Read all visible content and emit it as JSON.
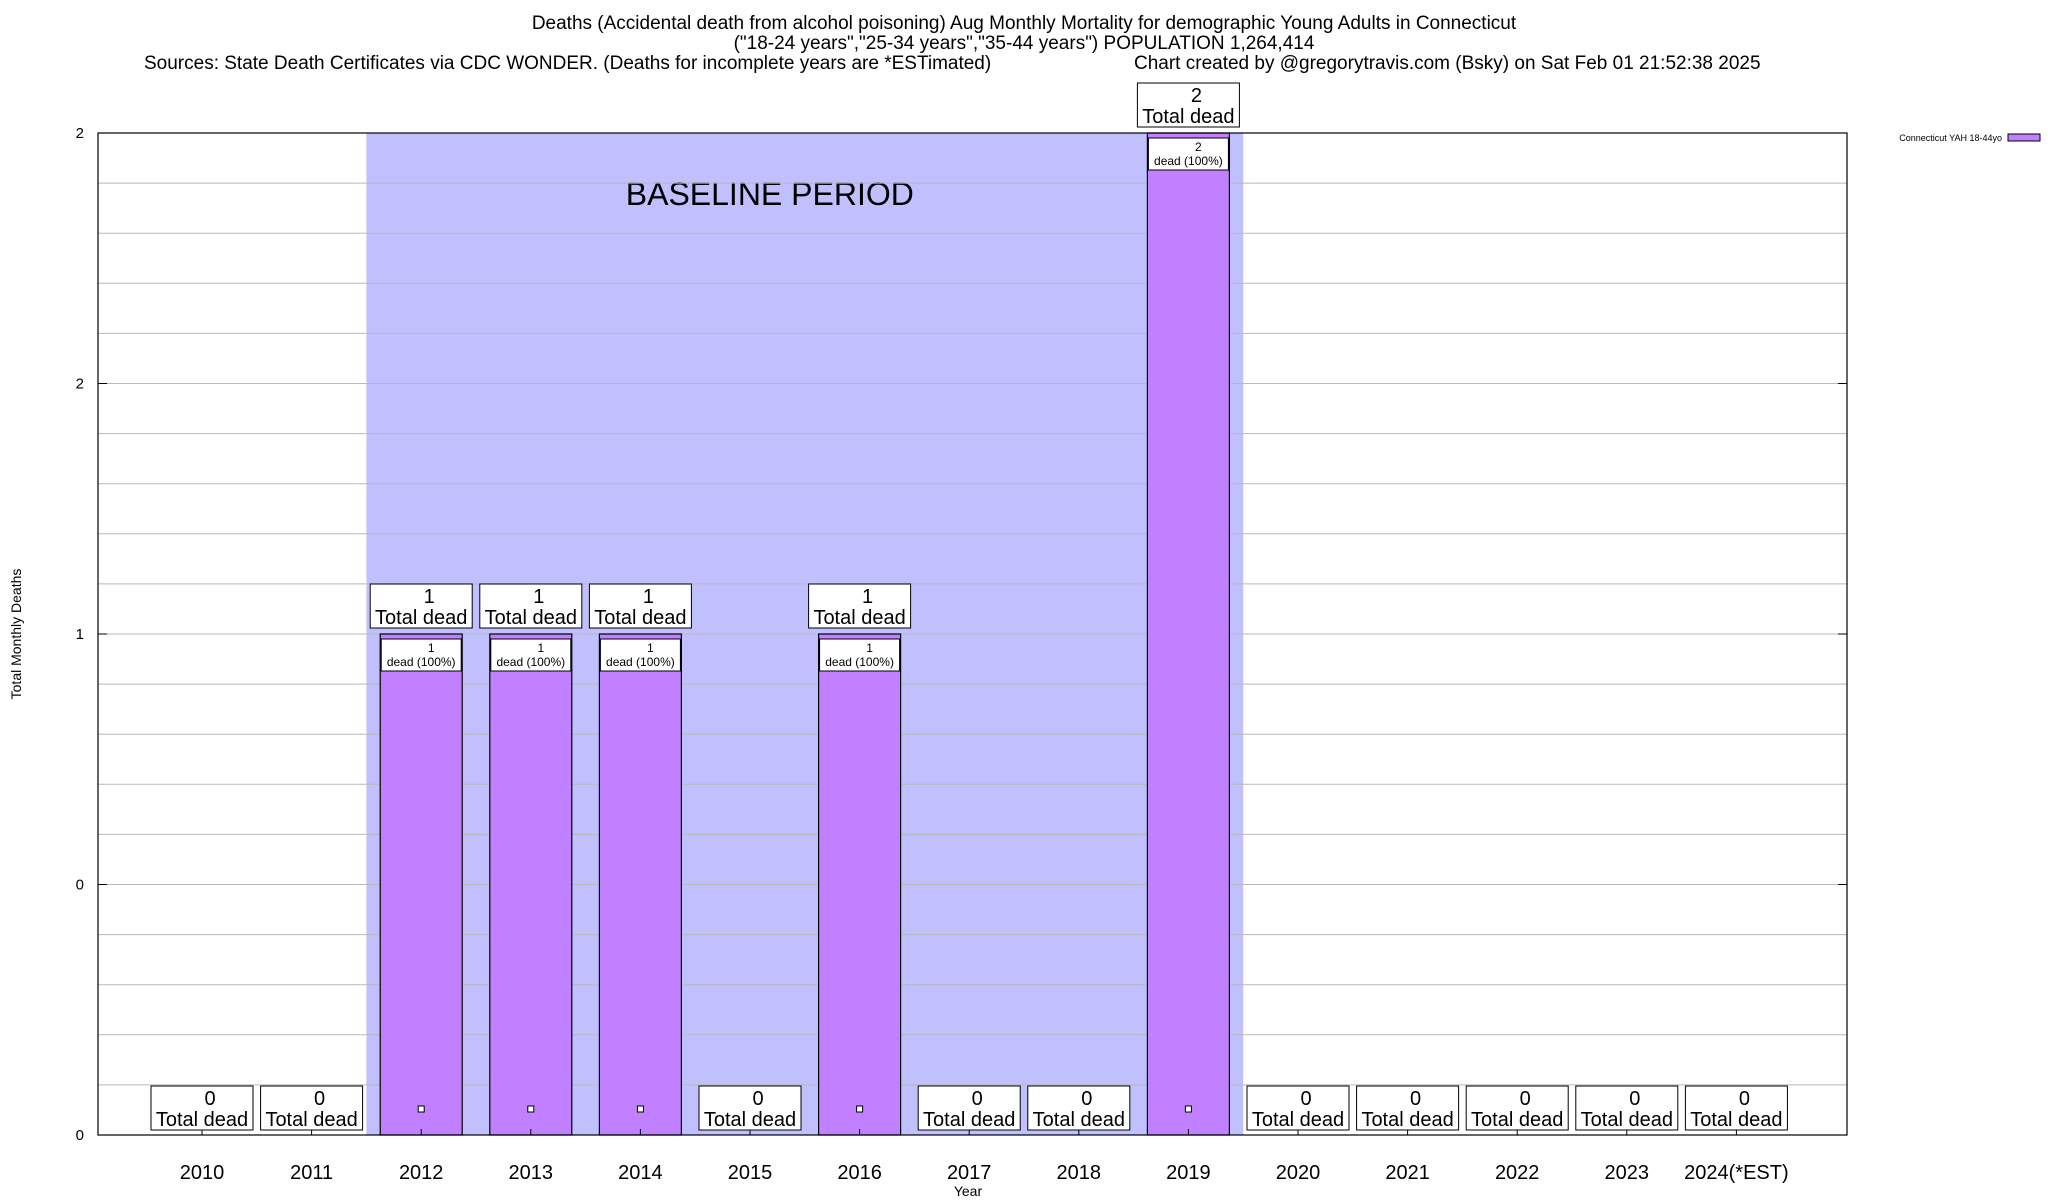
{
  "header": {
    "line1": "Deaths (Accidental death from alcohol poisoning) Aug Monthly Mortality for demographic Young Adults in Connecticut",
    "line2": "(\"18-24 years\",\"25-34 years\",\"35-44 years\") POPULATION 1,264,414",
    "sources": "Sources: State Death Certificates via CDC WONDER. (Deaths for incomplete years are *ESTimated)",
    "credit": "Chart created by @gregorytravis.com (Bsky) on Sat Feb 01 21:52:38 2025"
  },
  "chart_data": {
    "type": "bar",
    "categories": [
      "2010",
      "2011",
      "2012",
      "2013",
      "2014",
      "2015",
      "2016",
      "2017",
      "2018",
      "2019",
      "2020",
      "2021",
      "2022",
      "2023",
      "2024(*EST)"
    ],
    "series": [
      {
        "name": "Connecticut YAH 18-44yo",
        "values": [
          0,
          0,
          1,
          1,
          1,
          0,
          1,
          0,
          0,
          2,
          0,
          0,
          0,
          0,
          0
        ]
      }
    ],
    "total_label": "Total dead",
    "inner_label": "dead (100%)",
    "xlabel": "Year",
    "ylabel": "Total Monthly Deaths",
    "ylim": [
      0,
      2
    ],
    "y_tick_labels": [
      "0",
      "0",
      "1",
      "2",
      "2"
    ],
    "y_tick_values": [
      0,
      0.5,
      1,
      1.5,
      2
    ],
    "baseline": {
      "label": "BASELINE PERIOD",
      "start": "2012",
      "end": "2019"
    },
    "grid": true,
    "legend_position": "top-right",
    "colors": {
      "bar": "#c080ff",
      "baseline": "#c0c0ff",
      "grid": "#b8b8b8"
    }
  }
}
